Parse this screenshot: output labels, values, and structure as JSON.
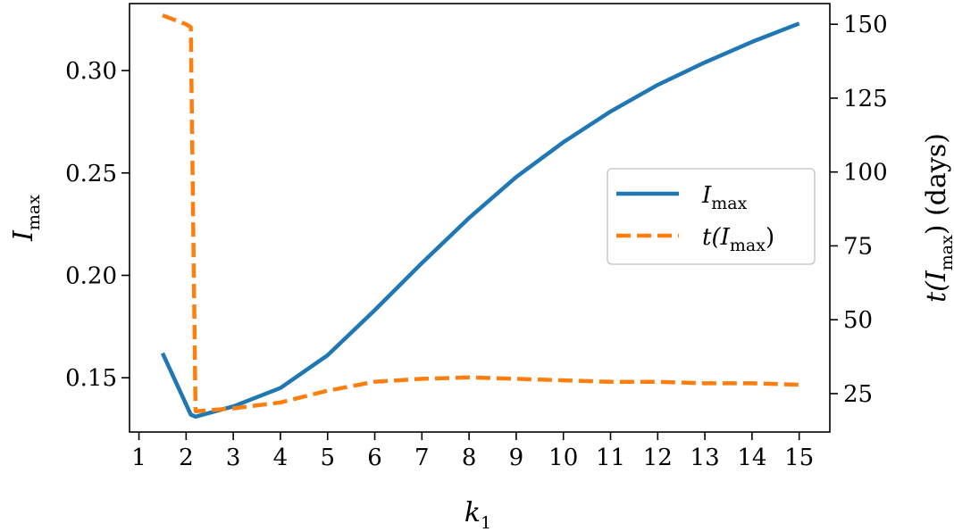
{
  "chart_data": {
    "type": "line",
    "xlabel": {
      "base": "k",
      "sub": "1"
    },
    "ylabel_left": {
      "base": "I",
      "sub": "max"
    },
    "ylabel_right": {
      "prefix": "t(",
      "base": "I",
      "sub": "max",
      "suffix": ") (days)"
    },
    "xlim": [
      0.8,
      15.65
    ],
    "ylim_left": [
      0.1235,
      0.3327
    ],
    "ylim_right": [
      12,
      157
    ],
    "x_ticks": [
      1,
      2,
      3,
      4,
      5,
      6,
      7,
      8,
      9,
      10,
      11,
      12,
      13,
      14,
      15
    ],
    "x_tick_labels": [
      "1",
      "2",
      "3",
      "4",
      "5",
      "6",
      "7",
      "8",
      "9",
      "10",
      "11",
      "12",
      "13",
      "14",
      "15"
    ],
    "y_left_ticks": [
      0.15,
      0.2,
      0.25,
      0.3
    ],
    "y_left_tick_labels": [
      "0.15",
      "0.20",
      "0.25",
      "0.30"
    ],
    "y_right_ticks": [
      25,
      50,
      75,
      100,
      125,
      150
    ],
    "y_right_tick_labels": [
      "25",
      "50",
      "75",
      "100",
      "125",
      "150"
    ],
    "grid": false,
    "legend_position": "center-right",
    "series": [
      {
        "name": {
          "base": "I",
          "sub": "max",
          "prefix": "",
          "suffix": ""
        },
        "axis": "left",
        "color": "#1f77b4",
        "dash": "solid",
        "x": [
          1.5,
          2.1,
          2.2,
          3.0,
          4.0,
          5.0,
          6.0,
          7.0,
          8.0,
          9.0,
          10.0,
          11.0,
          12.0,
          13.0,
          14.0,
          15.0
        ],
        "y": [
          0.162,
          0.132,
          0.131,
          0.136,
          0.145,
          0.161,
          0.183,
          0.206,
          0.228,
          0.248,
          0.265,
          0.28,
          0.293,
          0.304,
          0.314,
          0.323
        ]
      },
      {
        "name": {
          "base": "I",
          "sub": "max",
          "prefix": "t(",
          "suffix": ")"
        },
        "axis": "right",
        "color": "#ff7f0e",
        "dash": "dashed",
        "x": [
          1.5,
          2.0,
          2.1,
          2.2,
          3.0,
          4.0,
          5.0,
          6.0,
          7.0,
          8.0,
          9.0,
          10.0,
          11.0,
          12.0,
          13.0,
          14.0,
          15.0
        ],
        "y": [
          153,
          150,
          149,
          19,
          20,
          22,
          26,
          29,
          30,
          30.5,
          30,
          29.5,
          29,
          29,
          28.5,
          28.5,
          28
        ]
      }
    ]
  }
}
